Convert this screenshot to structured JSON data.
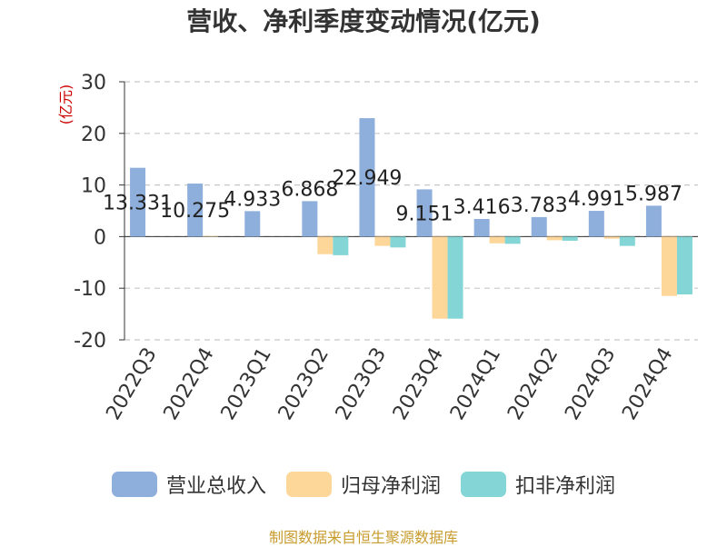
{
  "chart_data": {
    "type": "bar",
    "title": "营收、净利季度变动情况(亿元)",
    "unit_label": "(亿元)",
    "categories": [
      "2022Q3",
      "2022Q4",
      "2023Q1",
      "2023Q2",
      "2023Q3",
      "2023Q4",
      "2024Q1",
      "2024Q2",
      "2024Q3",
      "2024Q4"
    ],
    "series": [
      {
        "name": "营业总收入",
        "color": "#8eaedb",
        "values": [
          13.331,
          10.275,
          4.933,
          6.868,
          22.949,
          9.151,
          3.416,
          3.783,
          4.991,
          5.987
        ],
        "labels": [
          "13.331",
          "10.275",
          "4.933",
          "6.868",
          "22.949",
          "9.151",
          "3.416",
          "3.783",
          "4.991",
          "5.987"
        ]
      },
      {
        "name": "归母净利润",
        "color": "#fdd699",
        "values": [
          0.0,
          0.1,
          0.0,
          -3.4,
          -1.8,
          -15.9,
          -1.3,
          -0.7,
          -0.4,
          -11.5
        ]
      },
      {
        "name": "扣非净利润",
        "color": "#84d5d5",
        "values": [
          0.0,
          0.0,
          0.0,
          -3.6,
          -2.1,
          -15.9,
          -1.4,
          -0.8,
          -1.8,
          -11.2
        ]
      }
    ],
    "ylim": [
      -20,
      30
    ],
    "yticks": [
      30,
      20,
      10,
      0,
      -10,
      -20
    ],
    "grid": true,
    "legend_position": "bottom"
  },
  "footer": {
    "source": "制图数据来自恒生聚源数据库"
  }
}
